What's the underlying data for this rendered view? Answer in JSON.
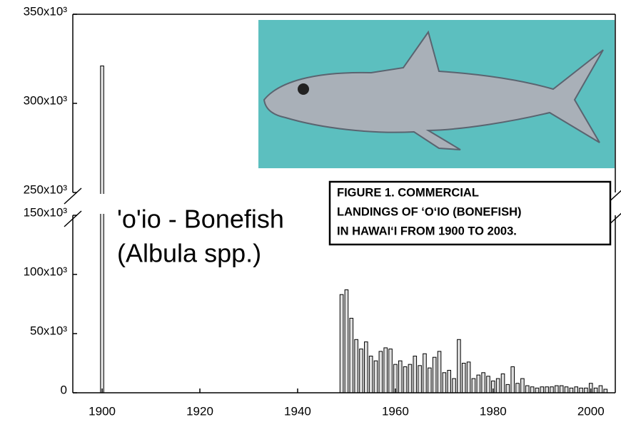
{
  "chart_data": {
    "type": "bar",
    "annotation": [
      "'o'io - Bonefish",
      "(Albula spp.)"
    ],
    "caption": [
      "FIGURE 1. COMMERCIAL",
      "LANDINGS OF ‘O‘IO (BONEFISH)",
      "IN HAWAI‘I FROM 1900 TO 2003."
    ],
    "x": [
      1900,
      1949,
      1950,
      1951,
      1952,
      1953,
      1954,
      1955,
      1956,
      1957,
      1958,
      1959,
      1960,
      1961,
      1962,
      1963,
      1964,
      1965,
      1966,
      1967,
      1968,
      1969,
      1970,
      1971,
      1972,
      1973,
      1974,
      1975,
      1976,
      1977,
      1978,
      1979,
      1980,
      1981,
      1982,
      1983,
      1984,
      1985,
      1986,
      1987,
      1988,
      1989,
      1990,
      1991,
      1992,
      1993,
      1994,
      1995,
      1996,
      1997,
      1998,
      1999,
      2000,
      2001,
      2002,
      2003
    ],
    "values": [
      321000,
      83000,
      87000,
      63000,
      45000,
      37000,
      43000,
      31000,
      27000,
      35000,
      38000,
      37000,
      24000,
      27000,
      22000,
      24000,
      31000,
      23000,
      33000,
      21000,
      30000,
      35000,
      17000,
      19000,
      12000,
      45000,
      25000,
      26000,
      12000,
      15000,
      17000,
      14000,
      10000,
      12000,
      16000,
      7000,
      22000,
      8000,
      12000,
      6000,
      5000,
      4000,
      5000,
      5000,
      5000,
      6000,
      6000,
      5000,
      4000,
      5000,
      4000,
      4000,
      8000,
      4000,
      6000,
      3000
    ],
    "color": "#e0e0e0",
    "xlim": [
      1894,
      2005
    ],
    "xticks": [
      1900,
      1920,
      1940,
      1960,
      1980,
      2000
    ],
    "ylim": [
      0,
      350000
    ],
    "y_break": [
      150000,
      250000
    ],
    "yticks": [
      0,
      {
        "value": 50000,
        "label": "50x10³"
      },
      {
        "value": 100000,
        "label": "100x10³"
      },
      {
        "value": 150000,
        "label": "150x10³"
      },
      {
        "value": 250000,
        "label": "250x10³"
      },
      {
        "value": 300000,
        "label": "300x10³"
      },
      {
        "value": 350000,
        "label": "350x10³"
      }
    ]
  }
}
